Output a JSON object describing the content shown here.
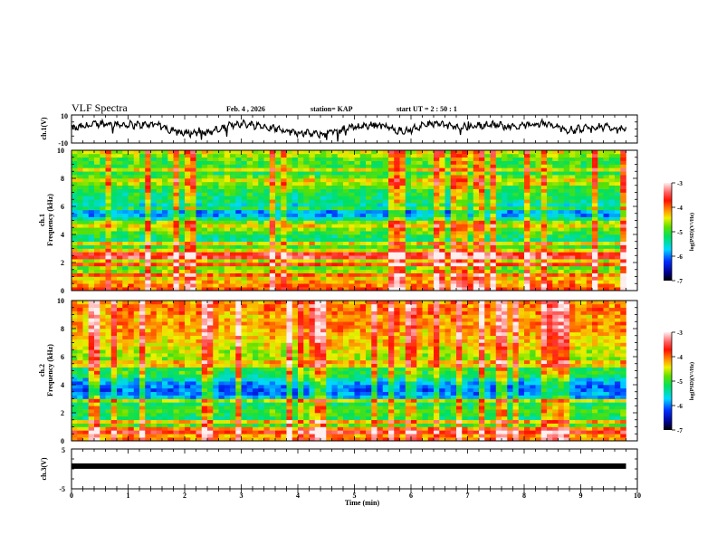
{
  "header": {
    "title": "VLF Spectra",
    "date": "Feb. 4 , 2026",
    "station": "station= KAP",
    "start_ut": "start  UT  =   2  : 50 : 1"
  },
  "chart_data": [
    {
      "type": "line",
      "name": "ch1-waveform",
      "ylabel": "ch.1(V)",
      "ylim": [
        -10,
        10
      ],
      "yticks": [
        "10",
        "-10"
      ],
      "xlim": [
        0,
        10
      ],
      "x_data_extent_min": 9.8,
      "series_description_values_approx": [
        0,
        4,
        3,
        3,
        -3,
        -2,
        4,
        2,
        -2,
        -4,
        1,
        3,
        -2,
        4,
        1,
        3,
        2,
        4,
        -1,
        2,
        -1
      ]
    },
    {
      "type": "heatmap",
      "name": "ch1-spectrogram",
      "ylabel_line1": "ch.1",
      "ylabel_line2": "Frequency (kHz)",
      "ylim": [
        0,
        10
      ],
      "yticks": [
        "0",
        "2",
        "4",
        "6",
        "8",
        "10"
      ],
      "xlim": [
        0,
        10
      ],
      "x_data_extent_min": 9.8,
      "colorbar": {
        "label": "log(PSD)(V²/Hz)",
        "range": [
          -7,
          -3
        ],
        "ticks": [
          "-3",
          "-4",
          "-5",
          "-6",
          "-7"
        ],
        "colormap": "rainbow (black-blue-cyan-green-yellow-red-white)"
      },
      "band_profile_logpsd": [
        -3.9,
        -4.2,
        -4.6,
        -4.8,
        -4.5,
        -4.1,
        -5.1,
        -5.3,
        -4.9,
        -4.3,
        -5.8,
        -5.9,
        -5.3,
        -5.2,
        -5.0,
        -4.4,
        -5.1,
        -5.0,
        -4.9,
        -4.5
      ]
    },
    {
      "type": "heatmap",
      "name": "ch2-spectrogram",
      "ylabel_line1": "ch.2",
      "ylabel_line2": "Frequency (kHz)",
      "ylim": [
        0,
        10
      ],
      "yticks": [
        "0",
        "2",
        "4",
        "6",
        "8",
        "10"
      ],
      "xlim": [
        0,
        10
      ],
      "x_data_extent_min": 9.8,
      "colorbar": {
        "label": "log(PSD)(V²/Hz)",
        "range": [
          -7,
          -3
        ],
        "ticks": [
          "-3",
          "-4",
          "-5",
          "-6",
          "-7"
        ],
        "colormap": "rainbow (black-blue-cyan-green-yellow-red-white)"
      },
      "band_profile_logpsd": [
        -4.0,
        -4.3,
        -5.0,
        -5.2,
        -4.9,
        -5.3,
        -5.9,
        -6.1,
        -5.8,
        -5.0,
        -5.1,
        -4.7,
        -4.6,
        -4.4,
        -4.3,
        -4.2,
        -4.1,
        -4.2,
        -4.0,
        -4.1
      ]
    },
    {
      "type": "line",
      "name": "ch3-waveform",
      "ylabel": "ch.3(V)",
      "ylim": [
        -5,
        5
      ],
      "yticks": [
        "5",
        "-5"
      ],
      "xlim": [
        0,
        10
      ],
      "x_data_extent_min": 9.8,
      "constant_value_approx": 0.7
    }
  ],
  "xaxis": {
    "label": "Time  (min)",
    "ticks": [
      "0",
      "1",
      "2",
      "3",
      "4",
      "5",
      "6",
      "7",
      "8",
      "9",
      "10"
    ]
  },
  "colors": {
    "axis": "#000000",
    "background": "#ffffff"
  }
}
